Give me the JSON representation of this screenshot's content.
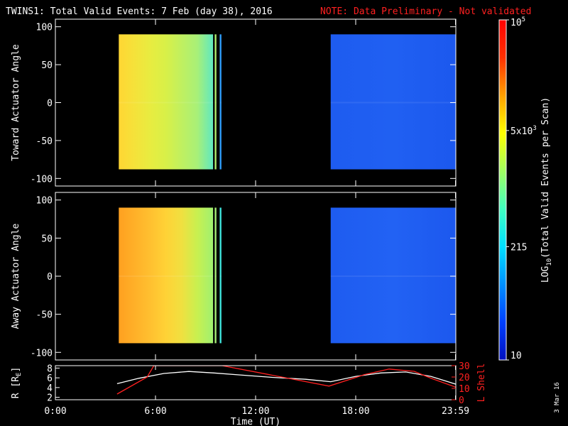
{
  "header": {
    "title": "TWINS1: Total Valid Events:  7 Feb (day  38), 2016",
    "note": "NOTE: Data Preliminary - Not validated"
  },
  "stamp": "3 Mar 16",
  "colors": {
    "background": "#000000",
    "axis": "#ffffff",
    "note": "#ff2020",
    "r_line": "#ffffff",
    "lshell_line": "#ff2020"
  },
  "colorbar": {
    "label": "LOG10(Total Valid Events per Scan)",
    "label_main": "LOG",
    "label_sub": "10",
    "label_rest": "(Total Valid Events per Scan)",
    "scale": "log",
    "range": [
      10,
      100000
    ],
    "ticks": [
      {
        "value": 10,
        "label": "10"
      },
      {
        "value": 215,
        "label": "215"
      },
      {
        "value": 5000,
        "label": "5x10",
        "sup": "3"
      },
      {
        "value": 100000,
        "label": "10",
        "sup": "5"
      }
    ],
    "colormap": [
      "#0010c0",
      "#0040ff",
      "#0090ff",
      "#00e0ff",
      "#40ffc0",
      "#a0ff60",
      "#ffff00",
      "#ffa000",
      "#ff3000",
      "#ff0000"
    ]
  },
  "x_axis": {
    "label": "Time (UT)",
    "range_hours": [
      0,
      24
    ],
    "ticks": [
      {
        "hour": 0,
        "label": "0:00"
      },
      {
        "hour": 6,
        "label": "6:00"
      },
      {
        "hour": 12,
        "label": "12:00"
      },
      {
        "hour": 18,
        "label": "18:00"
      },
      {
        "hour": 23.98,
        "label": "23:59"
      }
    ]
  },
  "chart_data": [
    {
      "type": "heatmap",
      "ylabel": "Toward Actuator Angle",
      "ylim": [
        -110,
        110
      ],
      "yticks": [
        100,
        50,
        0,
        -50,
        -100
      ],
      "angle_range": [
        -88,
        90
      ],
      "blocks": [
        {
          "t0": 3.8,
          "t1": 9.45,
          "approx_value": 8000,
          "colors": [
            "#ffd633",
            "#f5e23a",
            "#e8ec40",
            "#d8f048",
            "#c0f060",
            "#a8f078",
            "#60e8c0"
          ]
        },
        {
          "t0": 9.55,
          "t1": 9.65,
          "approx_value": 6000,
          "colors": [
            "#b0f070"
          ]
        },
        {
          "t0": 9.85,
          "t1": 9.95,
          "approx_value": 1500,
          "colors": [
            "#30a0ff"
          ]
        },
        {
          "t0": 16.5,
          "t1": 24.0,
          "approx_value": 150,
          "colors": [
            "#1e5cf0",
            "#2060f2",
            "#1c58ee"
          ]
        }
      ]
    },
    {
      "type": "heatmap",
      "ylabel": "Away Actuator Angle",
      "ylim": [
        -110,
        110
      ],
      "yticks": [
        100,
        50,
        0,
        -50,
        -100
      ],
      "angle_range": [
        -88,
        90
      ],
      "blocks": [
        {
          "t0": 3.8,
          "t1": 9.45,
          "approx_value": 20000,
          "colors": [
            "#ffa020",
            "#ffb028",
            "#ffc030",
            "#ffd236",
            "#f0e040",
            "#c8f050",
            "#a0f070"
          ]
        },
        {
          "t0": 9.55,
          "t1": 9.65,
          "approx_value": 6000,
          "colors": [
            "#a8f078"
          ]
        },
        {
          "t0": 9.85,
          "t1": 9.95,
          "approx_value": 3000,
          "colors": [
            "#40e8e0"
          ]
        },
        {
          "t0": 16.5,
          "t1": 24.0,
          "approx_value": 150,
          "colors": [
            "#1e5cf0",
            "#2262f4",
            "#1c58ee"
          ]
        }
      ]
    },
    {
      "type": "line",
      "ylabel": "R [RE]",
      "ylabel_main": "R [R",
      "ylabel_sub": "E",
      "ylabel_end": "]",
      "ylim": [
        1.5,
        8.5
      ],
      "yticks": [
        8,
        6,
        4,
        2
      ],
      "y2label": "L Shell",
      "y2lim": [
        0,
        30
      ],
      "y2ticks": [
        30,
        20,
        10,
        0
      ],
      "series": [
        {
          "axis": "left",
          "color": "#ffffff",
          "x": [
            3.7,
            5.0,
            6.5,
            8.0,
            9.5,
            11.0,
            13.0,
            15.0,
            16.5,
            18.0,
            19.5,
            21.0,
            22.5,
            24.0
          ],
          "y": [
            4.8,
            5.9,
            6.9,
            7.3,
            7.0,
            6.6,
            6.1,
            5.7,
            5.2,
            6.3,
            7.0,
            7.2,
            6.3,
            4.7
          ]
        },
        {
          "axis": "right",
          "color": "#ff2020",
          "x": [
            3.7,
            5.5,
            5.9,
            10.0,
            16.4,
            18.5,
            20.0,
            21.5,
            22.5,
            24.0
          ],
          "y": [
            5,
            20,
            30,
            30,
            12,
            22,
            27,
            25,
            19,
            11
          ]
        }
      ]
    }
  ]
}
